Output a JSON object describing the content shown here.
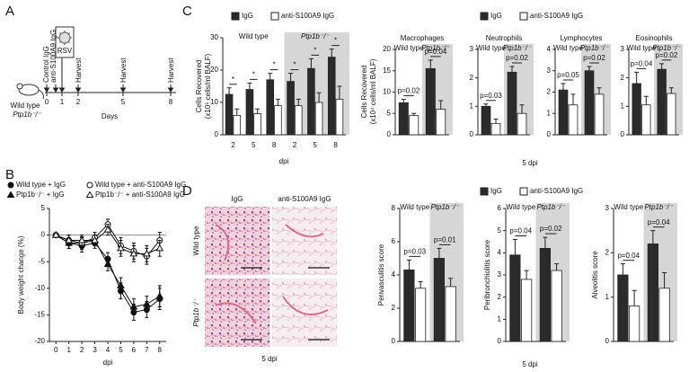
{
  "panels": [
    "A",
    "B",
    "C",
    "D"
  ],
  "timeline": {
    "events": [
      "Control IgG",
      "anti-S100A9 IgG",
      "RSV",
      "Harvest",
      "Harvest",
      "Harvest"
    ],
    "days": [
      "0",
      "1",
      "2",
      "5",
      "8"
    ],
    "axis_label": "Days",
    "mice": [
      "Wild type",
      "Ptp1b⁻/⁻"
    ]
  },
  "histology": {
    "columns": [
      "IgG",
      "anti-S100A9 IgG"
    ],
    "rows": [
      "Wild type",
      "Ptp1b⁻/⁻"
    ],
    "xlabel": "5 dpi"
  },
  "chart_data": [
    {
      "type": "line",
      "ylabel": "Body weight change (%)",
      "xlabel": "dpi",
      "x": [
        0,
        1,
        2,
        3,
        4,
        5,
        6,
        7,
        8
      ],
      "xlim": [
        -0.5,
        8.5
      ],
      "xticks": [
        0,
        1,
        2,
        3,
        4,
        5,
        6,
        7,
        8
      ],
      "ylim": [
        -20,
        5
      ],
      "yticks": [
        -20,
        -15,
        -10,
        -5,
        0,
        5
      ],
      "series": [
        {
          "name": "Wild type + IgG",
          "color": "#111",
          "marker": "circle",
          "filled": true,
          "values": [
            0,
            -1.5,
            -2,
            -1.5,
            -4.5,
            -10.5,
            -14.5,
            -14,
            -12
          ],
          "errors": [
            0,
            1,
            1.2,
            1,
            1.2,
            1.5,
            1.5,
            1.5,
            2
          ]
        },
        {
          "name": "Ptp1b⁻/⁻ + IgG",
          "color": "#111",
          "marker": "triangle",
          "filled": true,
          "values": [
            0,
            -1.5,
            -1.5,
            -1,
            -5.5,
            -9.5,
            -13.5,
            -13,
            -11.5
          ],
          "errors": [
            0,
            1,
            1.2,
            1,
            1.2,
            1.5,
            1.5,
            1.5,
            2
          ]
        },
        {
          "name": "Wild type + anti-S100A9 IgG",
          "color": "#111",
          "marker": "circle",
          "filled": false,
          "values": [
            0,
            -1,
            -1.5,
            -0.5,
            2,
            -2,
            -3,
            -4,
            -1
          ],
          "errors": [
            0,
            1,
            1,
            1,
            1,
            1.5,
            1.5,
            1.5,
            1.5
          ]
        },
        {
          "name": "Ptp1b⁻/⁻ + anti-S100A9 IgG",
          "color": "#111",
          "marker": "triangle",
          "filled": false,
          "values": [
            0,
            -1,
            -1,
            -1,
            1,
            -2.5,
            -3.5,
            -3.5,
            -2.5
          ],
          "errors": [
            0,
            1,
            1,
            1,
            1,
            1.5,
            1.5,
            1.5,
            1.5
          ]
        }
      ]
    },
    {
      "type": "bar",
      "ylabel": [
        "Cells Recovered",
        "(x10⁵ cells/ml BALF)"
      ],
      "xlabel": "dpi",
      "groups": [
        "Wild type",
        "Ptp1b⁻/⁻"
      ],
      "shade": true,
      "categories": [
        "2",
        "5",
        "8",
        "2",
        "5",
        "8"
      ],
      "ylim": [
        0,
        30
      ],
      "yticks": [
        0,
        10,
        20,
        30
      ],
      "annotations": [
        "*",
        "*",
        "*",
        "*",
        "*",
        "*"
      ],
      "series": [
        {
          "name": "IgG",
          "color": "#2b2b2b",
          "values": [
            12.5,
            14,
            17,
            16.5,
            20.5,
            24
          ],
          "errors": [
            2,
            2,
            2,
            2.5,
            3,
            2.5
          ]
        },
        {
          "name": "anti-S100A9 IgG",
          "color": "#ffffff",
          "values": [
            6,
            6.5,
            9,
            9,
            10,
            11
          ],
          "errors": [
            2,
            1.5,
            2,
            2,
            3,
            4
          ]
        }
      ]
    },
    {
      "type": "bar",
      "title": "Macrophages",
      "ylabel": [
        "Cells Recovered",
        "(x10⁴ cells/ml BALF)"
      ],
      "xlabel": "5 dpi",
      "shade": true,
      "categories": [
        "Wild type",
        "Ptp1b⁻/⁻"
      ],
      "ylim": [
        0,
        20
      ],
      "yticks": [
        0,
        5,
        10,
        15,
        20
      ],
      "annotations": [
        "p=0.02",
        "p=0.04"
      ],
      "series": [
        {
          "name": "IgG",
          "color": "#2b2b2b",
          "values": [
            7.5,
            15.5
          ],
          "errors": [
            0.8,
            2
          ]
        },
        {
          "name": "anti-S100A9 IgG",
          "color": "#ffffff",
          "values": [
            4.5,
            6
          ],
          "errors": [
            0.5,
            2
          ]
        }
      ]
    },
    {
      "type": "bar",
      "title": "Neutrophils",
      "shade": true,
      "categories": [
        "Wild type",
        "Ptp1b⁻/⁻"
      ],
      "ylim": [
        0,
        3
      ],
      "yticks": [
        0,
        1,
        2,
        3
      ],
      "annotations": [
        "p=0.03",
        "p=0.02"
      ],
      "series": [
        {
          "color": "#2b2b2b",
          "values": [
            1,
            2.2
          ],
          "errors": [
            0.08,
            0.2
          ]
        },
        {
          "color": "#ffffff",
          "values": [
            0.4,
            0.75
          ],
          "errors": [
            0.15,
            0.3
          ]
        }
      ]
    },
    {
      "type": "bar",
      "title": "Lymphocytes",
      "shade": true,
      "categories": [
        "Wild type",
        "Ptp1b⁻/⁻"
      ],
      "ylim": [
        0,
        4
      ],
      "yticks": [
        0,
        1,
        2,
        3,
        4
      ],
      "annotations": [
        "p=0.05",
        "p=0.02"
      ],
      "series": [
        {
          "color": "#2b2b2b",
          "values": [
            2.1,
            3
          ],
          "errors": [
            0.3,
            0.2
          ]
        },
        {
          "color": "#ffffff",
          "values": [
            1.4,
            1.9
          ],
          "errors": [
            0.5,
            0.3
          ]
        }
      ]
    },
    {
      "type": "bar",
      "title": "Eosinophils",
      "shade": true,
      "categories": [
        "Wild type",
        "Ptp1b⁻/⁻"
      ],
      "ylim": [
        0,
        3
      ],
      "yticks": [
        0,
        1,
        2,
        3
      ],
      "annotations": [
        "p=0.04",
        "p=0.02"
      ],
      "series": [
        {
          "color": "#2b2b2b",
          "values": [
            1.8,
            2.3
          ],
          "errors": [
            0.4,
            0.2
          ]
        },
        {
          "color": "#ffffff",
          "values": [
            1.05,
            1.45
          ],
          "errors": [
            0.3,
            0.2
          ]
        }
      ]
    },
    {
      "type": "bar",
      "ylabel": "Perivasculitis score",
      "xlabel": "5 dpi",
      "shade": true,
      "categories": [
        "Wild type",
        "Ptp1b⁻/⁻"
      ],
      "ylim": [
        0,
        8
      ],
      "yticks": [
        0,
        2,
        4,
        6,
        8
      ],
      "annotations": [
        "p=0.03",
        "p=0.01"
      ],
      "series": [
        {
          "name": "IgG",
          "color": "#2b2b2b",
          "values": [
            4.3,
            5
          ],
          "errors": [
            0.6,
            0.6
          ]
        },
        {
          "name": "anti-S100A9 IgG",
          "color": "#ffffff",
          "values": [
            3.2,
            3.3
          ],
          "errors": [
            0.4,
            0.5
          ]
        }
      ]
    },
    {
      "type": "bar",
      "ylabel": "Peribronchiolitis score",
      "shade": true,
      "categories": [
        "Wild type",
        "Ptp1b⁻/⁻"
      ],
      "ylim": [
        0,
        6
      ],
      "yticks": [
        0,
        1,
        2,
        3,
        4,
        5,
        6
      ],
      "annotations": [
        "p=0.04",
        "p=0.02"
      ],
      "series": [
        {
          "color": "#2b2b2b",
          "values": [
            3.9,
            4.2
          ],
          "errors": [
            0.7,
            0.5
          ]
        },
        {
          "color": "#ffffff",
          "values": [
            2.8,
            3.2
          ],
          "errors": [
            0.4,
            0.3
          ]
        }
      ]
    },
    {
      "type": "bar",
      "ylabel": "Alveolitis score",
      "shade": true,
      "categories": [
        "Wild type",
        "Ptp1b⁻/⁻"
      ],
      "ylim": [
        0,
        3
      ],
      "yticks": [
        0,
        1,
        2,
        3
      ],
      "annotations": [
        "p=0.04",
        "p=0.04"
      ],
      "series": [
        {
          "color": "#2b2b2b",
          "values": [
            1.5,
            2.2
          ],
          "errors": [
            0.25,
            0.3
          ]
        },
        {
          "color": "#ffffff",
          "values": [
            0.8,
            1.2
          ],
          "errors": [
            0.35,
            0.35
          ]
        }
      ]
    }
  ]
}
